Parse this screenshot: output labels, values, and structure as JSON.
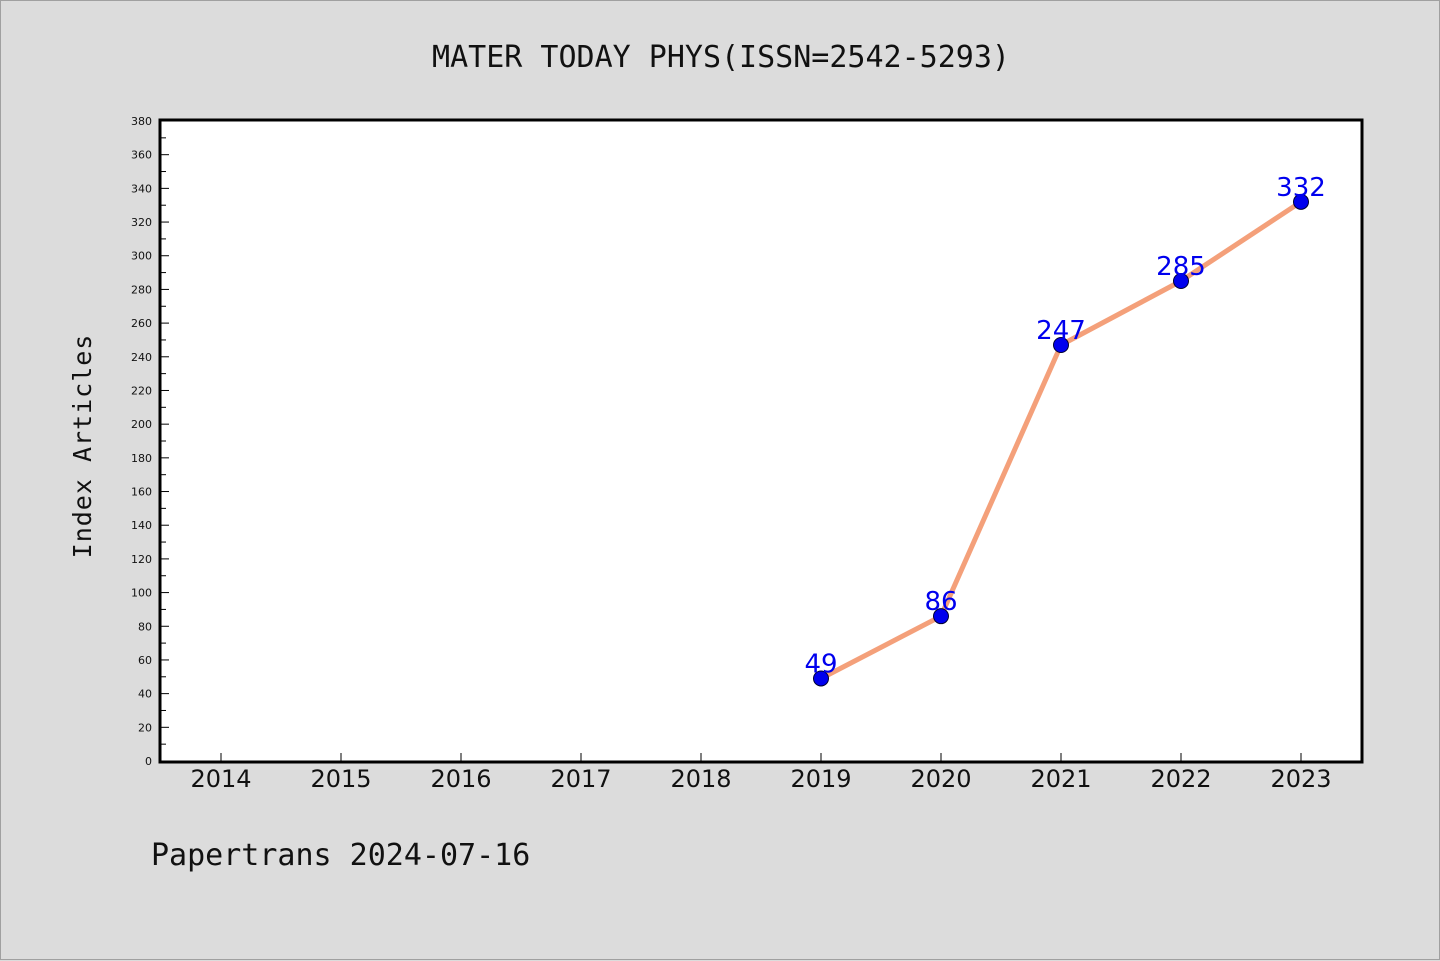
{
  "chart_data": {
    "type": "line",
    "title": "MATER TODAY PHYS(ISSN=2542-5293)",
    "ylabel": "Index Articles",
    "xlabel": "",
    "categories": [
      "2014",
      "2015",
      "2016",
      "2017",
      "2018",
      "2019",
      "2020",
      "2021",
      "2022",
      "2023"
    ],
    "series": [
      {
        "x": [
          "2019",
          "2020",
          "2021",
          "2022",
          "2023"
        ],
        "values": [
          49,
          86,
          247,
          285,
          332
        ]
      }
    ],
    "ylim": [
      0,
      380
    ],
    "ytick_step": 20,
    "grid": false,
    "line_color": "#f4a07a",
    "marker_color": "#0000ee",
    "label_color": "#0000ee"
  },
  "footer": {
    "text": "Papertrans 2024-07-16"
  }
}
